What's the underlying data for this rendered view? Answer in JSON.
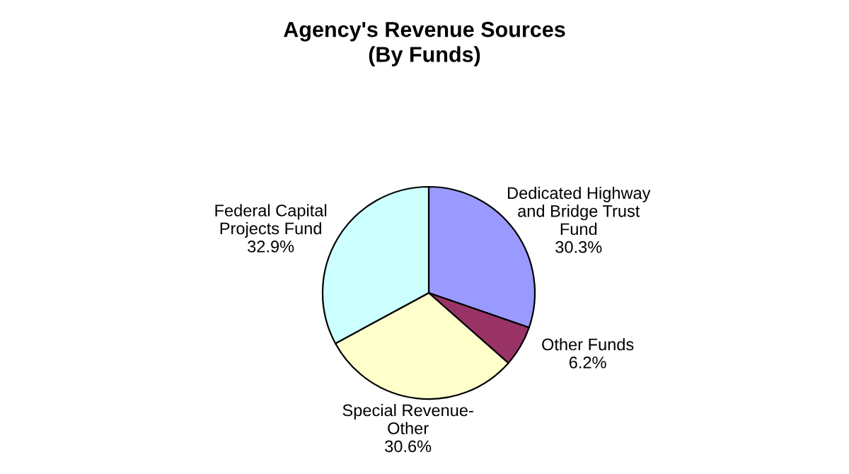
{
  "chart_data": {
    "type": "pie",
    "title": "Agency's Revenue Sources\n(By Funds)",
    "categories": [
      "Dedicated Highway\nand Bridge Trust\nFund",
      "Other Funds",
      "Special Revenue-\nOther",
      "Federal Capital\nProjects Fund"
    ],
    "values": [
      30.3,
      6.2,
      30.6,
      32.9
    ],
    "value_labels": [
      "30.3%",
      "6.2%",
      "30.6%",
      "32.9%"
    ],
    "colors": [
      "#9999ff",
      "#993366",
      "#ffffcc",
      "#ccffff"
    ],
    "legend": false
  }
}
